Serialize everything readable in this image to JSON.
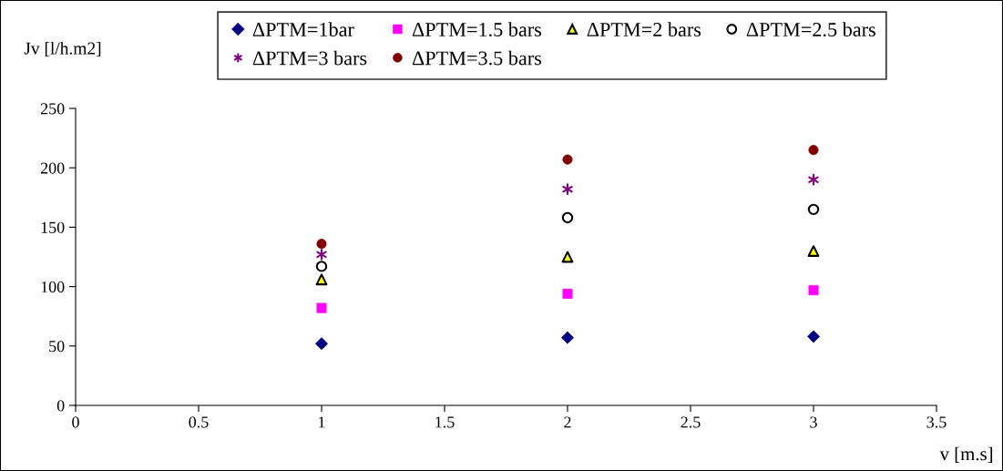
{
  "chart_data": {
    "type": "scatter",
    "xlabel": "v [m.s]",
    "ylabel": "Jv [l/h.m2]",
    "x": [
      1,
      2,
      3
    ],
    "series": [
      {
        "name": "ΔPTM=1bar",
        "color": "#000080",
        "marker": "diamond",
        "values": [
          52,
          57,
          58
        ]
      },
      {
        "name": "ΔPTM=1.5 bars",
        "color": "#ff00ff",
        "marker": "square",
        "values": [
          82,
          94,
          97
        ]
      },
      {
        "name": "ΔPTM=2 bars",
        "color": "#ffff00",
        "marker": "triangle",
        "values": [
          106,
          125,
          130
        ]
      },
      {
        "name": "ΔPTM=2.5 bars",
        "color": "#ffffff",
        "marker": "circle",
        "values": [
          117,
          158,
          165
        ]
      },
      {
        "name": "ΔPTM=3 bars",
        "color": "#800080",
        "marker": "cross",
        "values": [
          127,
          182,
          190
        ]
      },
      {
        "name": "ΔPTM=3.5 bars",
        "color": "#800000",
        "marker": "circle",
        "values": [
          136,
          207,
          215
        ]
      }
    ],
    "xlim": [
      0,
      3.5
    ],
    "xticks": [
      0,
      0.5,
      1,
      1.5,
      2,
      2.5,
      3,
      3.5
    ],
    "ylim": [
      0,
      250
    ],
    "yticks": [
      0,
      50,
      100,
      150,
      200,
      250
    ],
    "grid": false,
    "legend": "top"
  }
}
